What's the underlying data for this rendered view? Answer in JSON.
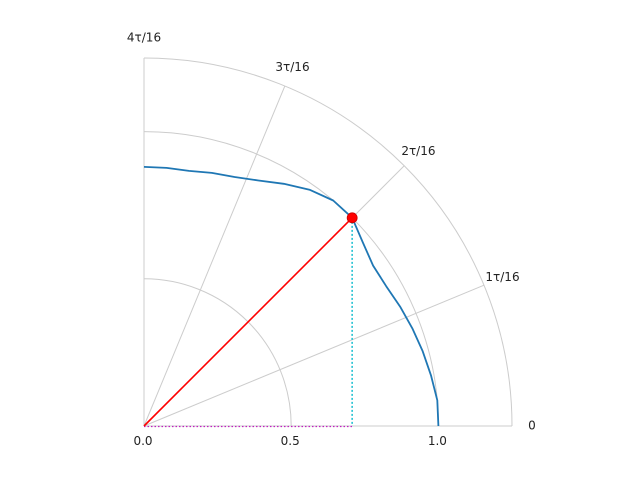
{
  "chart_data": {
    "type": "polar-line",
    "sector_deg": [
      0,
      90
    ],
    "r_lim": [
      0,
      1.25
    ],
    "grid": true,
    "radial_ticks": [
      0.0,
      0.5,
      1.0
    ],
    "radial_tick_labels": [
      "0.0",
      "0.5",
      "1.0"
    ],
    "angular_ticks_deg": [
      0,
      22.5,
      45,
      67.5,
      90
    ],
    "angular_tick_labels": [
      "0",
      "1τ/16",
      "2τ/16",
      "3τ/16",
      "4τ/16"
    ],
    "curve": {
      "theta_deg": [
        0,
        5,
        10,
        15,
        20,
        25,
        30,
        35,
        40,
        45,
        50,
        55,
        60,
        65,
        70,
        75,
        80,
        85,
        90
      ],
      "r": [
        1.0,
        1.0,
        0.99,
        0.98,
        0.97,
        0.96,
        0.95,
        0.95,
        0.97,
        1.0,
        1.0,
        0.98,
        0.95,
        0.92,
        0.9,
        0.89,
        0.88,
        0.88,
        0.88
      ]
    },
    "point": {
      "theta_deg": 45,
      "r": 1.0
    },
    "projection": {
      "x": 0.707,
      "y": 0.707
    },
    "colors": {
      "curve": "#1f77b4",
      "radius_line": "#ff0000",
      "point": "#ff0000",
      "vertical_projection": "#17becf",
      "horizontal_projection": "#c020c0",
      "grid": "#cccccc"
    }
  }
}
